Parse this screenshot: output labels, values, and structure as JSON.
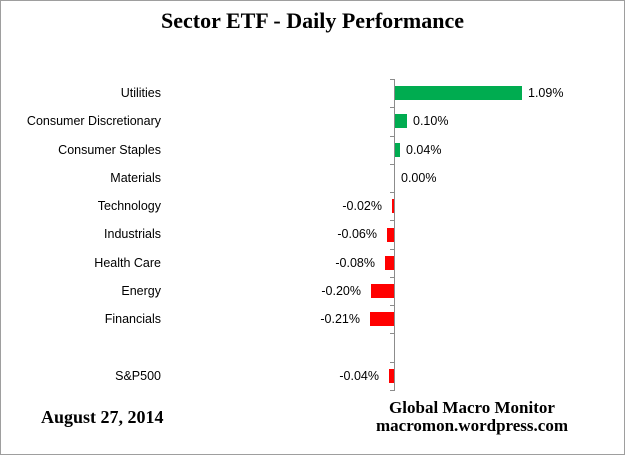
{
  "title": "Sector ETF - Daily Performance",
  "footer": {
    "date": "August 27, 2014",
    "source_line1": "Global Macro Monitor",
    "source_line2": "macromon.wordpress.com"
  },
  "colors": {
    "positive_bar": "#00AC50",
    "negative_bar": "#FF0000",
    "axis": "#8C8C8C",
    "text": "#000000",
    "frame_border": "#9E9E9E"
  },
  "chart_data": {
    "type": "bar",
    "orientation": "horizontal",
    "title": "Sector ETF - Daily Performance",
    "xlabel": "",
    "ylabel": "",
    "value_unit": "percent",
    "axis_baseline": 0,
    "xlim": [
      -0.3,
      1.25
    ],
    "grid": false,
    "legend": false,
    "categories": [
      "Utilities",
      "Consumer Discretionary",
      "Consumer Staples",
      "Materials",
      "Technology",
      "Industrials",
      "Health Care",
      "Energy",
      "Financials",
      "",
      "S&P500"
    ],
    "values": [
      1.09,
      0.1,
      0.04,
      0.0,
      -0.02,
      -0.06,
      -0.08,
      -0.2,
      -0.21,
      null,
      -0.04
    ],
    "value_labels": [
      "1.09%",
      "0.10%",
      "0.04%",
      "0.00%",
      "-0.02%",
      "-0.06%",
      "-0.08%",
      "-0.20%",
      "-0.21%",
      "",
      "-0.04%"
    ]
  }
}
